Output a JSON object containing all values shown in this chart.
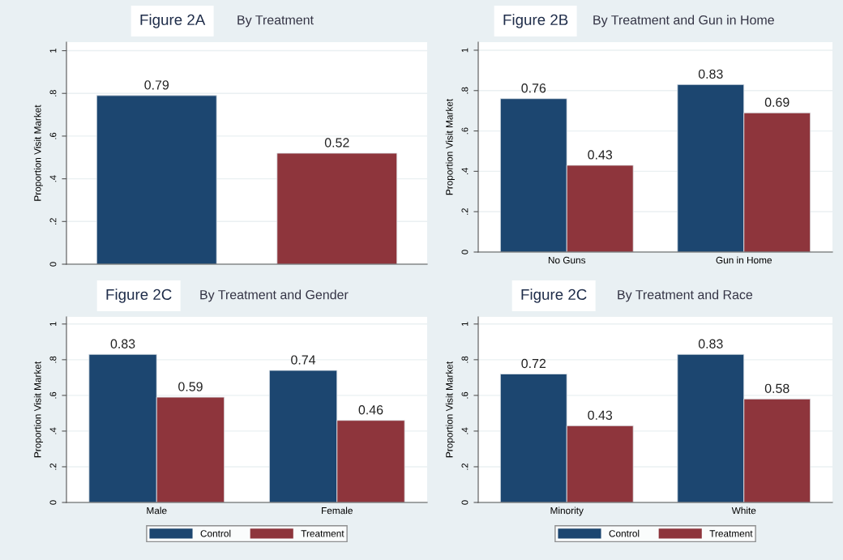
{
  "chart_data": [
    {
      "type": "bar",
      "title": "Figure 2A",
      "subtitle": "By Treatment",
      "ylabel": "Proportion Visit Market",
      "categories": [
        null,
        null
      ],
      "values": [
        0.79,
        0.52
      ],
      "colors": [
        "#1c4670",
        "#8e353c"
      ],
      "ylim": [
        0,
        1.04
      ],
      "yticks": [
        {
          "value": 0,
          "label": "0"
        },
        {
          "value": 0.2,
          "label": ".2"
        },
        {
          "value": 0.4,
          "label": ".4"
        },
        {
          "value": 0.6,
          "label": ".6"
        },
        {
          "value": 0.8,
          "label": ".8"
        },
        {
          "value": 1,
          "label": "1"
        }
      ],
      "grid": "y",
      "data_labels": true
    },
    {
      "type": "bar",
      "title": "Figure 2B",
      "subtitle": "By Treatment and Gun in Home",
      "ylabel": "Proportion Visit Market",
      "categories": [
        "No Guns",
        "Gun in Home"
      ],
      "series": [
        {
          "color": "#1c4670",
          "values": [
            0.76,
            0.83
          ]
        },
        {
          "color": "#8e353c",
          "values": [
            0.43,
            0.69
          ]
        }
      ],
      "ylim": [
        0,
        1.04
      ],
      "yticks": [
        {
          "value": 0,
          "label": "0"
        },
        {
          "value": 0.2,
          "label": ".2"
        },
        {
          "value": 0.4,
          "label": ".4"
        },
        {
          "value": 0.6,
          "label": ".6"
        },
        {
          "value": 0.8,
          "label": ".8"
        },
        {
          "value": 1,
          "label": "1"
        }
      ],
      "grid": "y",
      "data_labels": true
    },
    {
      "type": "bar",
      "title": "Figure 2C",
      "subtitle": "By Treatment and Gender",
      "ylabel": "Proportion Visit Market",
      "categories": [
        "Male",
        "Female"
      ],
      "series": [
        {
          "name": "Control",
          "color": "#1c4670",
          "values": [
            0.83,
            0.74
          ]
        },
        {
          "name": "Treatment",
          "color": "#8e353c",
          "values": [
            0.59,
            0.46
          ]
        }
      ],
      "ylim": [
        0,
        1.04
      ],
      "yticks": [
        {
          "value": 0,
          "label": "0"
        },
        {
          "value": 0.2,
          "label": ".2"
        },
        {
          "value": 0.4,
          "label": ".4"
        },
        {
          "value": 0.6,
          "label": ".6"
        },
        {
          "value": 0.8,
          "label": ".8"
        },
        {
          "value": 1,
          "label": "1"
        }
      ],
      "grid": "y",
      "legend": "bottom",
      "data_labels": true
    },
    {
      "type": "bar",
      "title": "Figure 2C",
      "subtitle": "By Treatment and Race",
      "ylabel": "Proportion Visit Market",
      "categories": [
        "Minority",
        "White"
      ],
      "series": [
        {
          "name": "Control",
          "color": "#1c4670",
          "values": [
            0.72,
            0.83
          ]
        },
        {
          "name": "Treatment",
          "color": "#8e353c",
          "values": [
            0.43,
            0.58
          ]
        }
      ],
      "ylim": [
        0,
        1.04
      ],
      "yticks": [
        {
          "value": 0,
          "label": "0"
        },
        {
          "value": 0.2,
          "label": ".2"
        },
        {
          "value": 0.4,
          "label": ".4"
        },
        {
          "value": 0.6,
          "label": ".6"
        },
        {
          "value": 0.8,
          "label": ".8"
        },
        {
          "value": 1,
          "label": "1"
        }
      ],
      "grid": "y",
      "legend": "bottom",
      "data_labels": true
    }
  ]
}
